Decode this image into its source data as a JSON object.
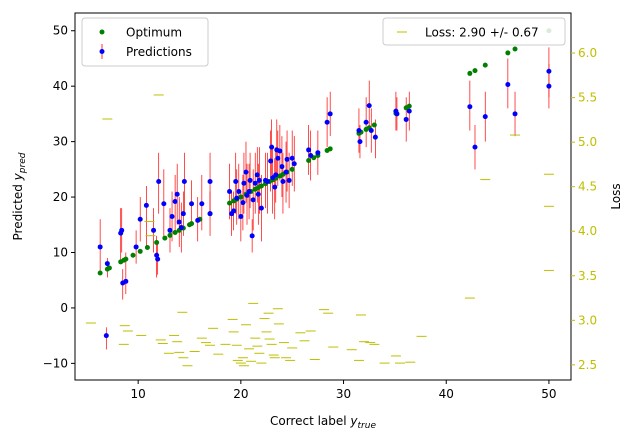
{
  "chart_data": {
    "type": "scatter",
    "xlabel": "Correct label y_true",
    "ylabel": "Predicted y_pred",
    "y2label": "Loss",
    "xlim": [
      3.85,
      52.15
    ],
    "ylim": [
      -13.0,
      53.2
    ],
    "y2lim": [
      2.33,
      6.45
    ],
    "xticks": [
      10,
      20,
      30,
      40,
      50
    ],
    "yticks": [
      -10,
      0,
      10,
      20,
      30,
      40,
      50
    ],
    "y2ticks": [
      2.5,
      3.0,
      3.5,
      4.0,
      4.5,
      5.0,
      5.5,
      6.0
    ],
    "colors": {
      "optimum": "#008000",
      "predictions": "#0000ff",
      "errorbar": "#ff0000",
      "loss": "#bfbf00"
    },
    "legend_left": [
      {
        "label": "Optimum",
        "marker": "dot",
        "color": "#008000"
      },
      {
        "label": "Predictions",
        "marker": "dot-errorbar",
        "color": "#0000ff"
      }
    ],
    "legend_right": {
      "label": "Loss: 2.90 +/- 0.67",
      "marker": "dash",
      "color": "#bfbf00"
    },
    "series": [
      {
        "name": "Optimum",
        "points": [
          [
            6.3,
            6.3
          ],
          [
            7.0,
            7.0
          ],
          [
            7.2,
            7.2
          ],
          [
            8.3,
            8.3
          ],
          [
            8.6,
            8.6
          ],
          [
            8.8,
            8.8
          ],
          [
            9.5,
            9.5
          ],
          [
            10.2,
            10.2
          ],
          [
            10.9,
            10.9
          ],
          [
            11.8,
            11.8
          ],
          [
            12.6,
            12.6
          ],
          [
            13.1,
            13.1
          ],
          [
            13.6,
            13.6
          ],
          [
            14.0,
            14.0
          ],
          [
            14.4,
            14.4
          ],
          [
            15.0,
            15.0
          ],
          [
            15.2,
            15.2
          ],
          [
            16.0,
            16.0
          ],
          [
            17.0,
            17.0
          ],
          [
            18.9,
            18.9
          ],
          [
            19.3,
            19.3
          ],
          [
            19.6,
            19.6
          ],
          [
            20.0,
            20.0
          ],
          [
            20.5,
            20.5
          ],
          [
            21.0,
            21.0
          ],
          [
            21.4,
            21.4
          ],
          [
            21.7,
            21.7
          ],
          [
            22.0,
            22.0
          ],
          [
            22.4,
            22.4
          ],
          [
            22.8,
            22.8
          ],
          [
            23.1,
            23.1
          ],
          [
            23.4,
            23.4
          ],
          [
            23.8,
            23.8
          ],
          [
            24.1,
            24.1
          ],
          [
            24.5,
            24.5
          ],
          [
            25.0,
            25.0
          ],
          [
            26.6,
            26.6
          ],
          [
            27.1,
            27.1
          ],
          [
            27.5,
            27.5
          ],
          [
            28.4,
            28.4
          ],
          [
            28.7,
            28.7
          ],
          [
            31.5,
            31.5
          ],
          [
            31.7,
            31.7
          ],
          [
            32.2,
            32.2
          ],
          [
            32.5,
            32.5
          ],
          [
            33.0,
            33.0
          ],
          [
            35.1,
            35.1
          ],
          [
            36.1,
            36.1
          ],
          [
            36.4,
            36.4
          ],
          [
            42.3,
            42.3
          ],
          [
            42.8,
            42.8
          ],
          [
            43.8,
            43.8
          ],
          [
            46.0,
            46.0
          ],
          [
            46.7,
            46.7
          ],
          [
            50.0,
            50.0
          ]
        ]
      },
      {
        "name": "Predictions",
        "points": [
          [
            6.3,
            11.0
          ],
          [
            6.9,
            -5.0
          ],
          [
            7.0,
            8.0
          ],
          [
            8.3,
            13.5
          ],
          [
            8.4,
            14.0
          ],
          [
            8.5,
            4.5
          ],
          [
            8.8,
            4.8
          ],
          [
            9.8,
            11.0
          ],
          [
            10.2,
            16.0
          ],
          [
            10.8,
            18.5
          ],
          [
            11.5,
            14.0
          ],
          [
            11.8,
            9.5
          ],
          [
            11.9,
            8.8
          ],
          [
            12.0,
            22.8
          ],
          [
            12.5,
            18.8
          ],
          [
            13.1,
            14.0
          ],
          [
            13.3,
            16.5
          ],
          [
            13.6,
            19.2
          ],
          [
            13.8,
            20.5
          ],
          [
            14.0,
            15.5
          ],
          [
            14.2,
            14.5
          ],
          [
            14.4,
            17.0
          ],
          [
            14.5,
            22.8
          ],
          [
            15.2,
            18.8
          ],
          [
            15.8,
            15.8
          ],
          [
            16.2,
            18.8
          ],
          [
            17.0,
            17.0
          ],
          [
            17.0,
            22.8
          ],
          [
            18.9,
            21.0
          ],
          [
            19.1,
            17.0
          ],
          [
            19.3,
            17.5
          ],
          [
            19.5,
            22.8
          ],
          [
            19.6,
            19.8
          ],
          [
            19.8,
            21.0
          ],
          [
            20.0,
            16.5
          ],
          [
            20.2,
            19.0
          ],
          [
            20.3,
            22.5
          ],
          [
            20.5,
            24.5
          ],
          [
            20.6,
            20.3
          ],
          [
            20.8,
            21.0
          ],
          [
            20.9,
            23.0
          ],
          [
            21.1,
            13.0
          ],
          [
            21.2,
            19.5
          ],
          [
            21.4,
            22.5
          ],
          [
            21.6,
            24.0
          ],
          [
            21.7,
            20.5
          ],
          [
            21.8,
            23.0
          ],
          [
            22.0,
            18.0
          ],
          [
            22.4,
            23.0
          ],
          [
            22.6,
            22.8
          ],
          [
            22.9,
            26.5
          ],
          [
            23.0,
            29.0
          ],
          [
            23.1,
            23.5
          ],
          [
            23.3,
            21.8
          ],
          [
            23.4,
            24.0
          ],
          [
            23.5,
            28.5
          ],
          [
            23.6,
            27.0
          ],
          [
            23.8,
            28.3
          ],
          [
            24.0,
            25.5
          ],
          [
            24.1,
            22.8
          ],
          [
            24.4,
            24.5
          ],
          [
            24.5,
            26.8
          ],
          [
            24.7,
            23.0
          ],
          [
            25.0,
            27.0
          ],
          [
            25.2,
            26.0
          ],
          [
            26.6,
            28.5
          ],
          [
            26.8,
            27.5
          ],
          [
            27.5,
            28.0
          ],
          [
            28.4,
            33.5
          ],
          [
            28.7,
            35.0
          ],
          [
            31.5,
            32.0
          ],
          [
            31.6,
            30.0
          ],
          [
            32.2,
            33.5
          ],
          [
            32.5,
            36.5
          ],
          [
            32.7,
            32.0
          ],
          [
            33.1,
            30.8
          ],
          [
            35.1,
            35.5
          ],
          [
            35.2,
            35.0
          ],
          [
            36.1,
            34.0
          ],
          [
            36.4,
            35.5
          ],
          [
            42.3,
            36.3
          ],
          [
            42.8,
            29.0
          ],
          [
            43.8,
            34.5
          ],
          [
            46.0,
            40.3
          ],
          [
            46.7,
            35.0
          ],
          [
            50.0,
            42.7
          ],
          [
            50.0,
            40.0
          ]
        ]
      },
      {
        "name": "Loss",
        "points": [
          [
            5.4,
            2.97
          ],
          [
            7.0,
            5.26
          ],
          [
            8.7,
            2.94
          ],
          [
            9.0,
            2.88
          ],
          [
            8.6,
            2.73
          ],
          [
            10.3,
            2.83
          ],
          [
            11.1,
            4.11
          ],
          [
            11.2,
            3.95
          ],
          [
            12.0,
            5.53
          ],
          [
            12.2,
            2.78
          ],
          [
            12.4,
            2.74
          ],
          [
            13.0,
            2.63
          ],
          [
            13.5,
            2.83
          ],
          [
            13.8,
            2.76
          ],
          [
            14.0,
            2.64
          ],
          [
            14.3,
            3.09
          ],
          [
            14.4,
            2.58
          ],
          [
            14.8,
            2.49
          ],
          [
            15.5,
            2.65
          ],
          [
            16.2,
            2.8
          ],
          [
            16.6,
            2.75
          ],
          [
            17.0,
            2.72
          ],
          [
            17.3,
            2.91
          ],
          [
            17.8,
            2.62
          ],
          [
            18.5,
            2.73
          ],
          [
            19.2,
            3.01
          ],
          [
            19.3,
            2.87
          ],
          [
            19.6,
            2.72
          ],
          [
            19.7,
            2.55
          ],
          [
            20.0,
            2.52
          ],
          [
            20.2,
            2.58
          ],
          [
            20.3,
            2.49
          ],
          [
            20.5,
            2.95
          ],
          [
            20.8,
            2.68
          ],
          [
            21.0,
            2.54
          ],
          [
            21.2,
            3.19
          ],
          [
            21.4,
            2.8
          ],
          [
            21.6,
            2.71
          ],
          [
            21.8,
            2.63
          ],
          [
            22.0,
            2.52
          ],
          [
            22.3,
            3.02
          ],
          [
            22.5,
            2.87
          ],
          [
            22.7,
            3.08
          ],
          [
            22.8,
            2.79
          ],
          [
            23.0,
            2.73
          ],
          [
            23.2,
            2.61
          ],
          [
            23.3,
            2.58
          ],
          [
            23.6,
            3.13
          ],
          [
            23.7,
            2.96
          ],
          [
            24.2,
            2.75
          ],
          [
            24.4,
            2.58
          ],
          [
            24.8,
            2.55
          ],
          [
            25.0,
            2.69
          ],
          [
            25.8,
            2.86
          ],
          [
            26.2,
            2.77
          ],
          [
            26.8,
            2.88
          ],
          [
            27.2,
            2.56
          ],
          [
            28.1,
            3.12
          ],
          [
            28.5,
            3.08
          ],
          [
            29.0,
            2.7
          ],
          [
            30.8,
            2.67
          ],
          [
            31.5,
            2.55
          ],
          [
            31.7,
            3.06
          ],
          [
            32.0,
            2.76
          ],
          [
            32.6,
            2.75
          ],
          [
            33.0,
            2.73
          ],
          [
            34.0,
            2.52
          ],
          [
            35.1,
            2.6
          ],
          [
            35.5,
            2.52
          ],
          [
            36.5,
            2.53
          ],
          [
            37.6,
            2.82
          ],
          [
            42.3,
            3.25
          ],
          [
            43.8,
            4.58
          ],
          [
            46.7,
            5.08
          ],
          [
            50.0,
            4.64
          ],
          [
            50.0,
            4.28
          ],
          [
            50.0,
            3.56
          ]
        ]
      }
    ],
    "errorbars": [
      [
        6.3,
        6.5,
        16.0
      ],
      [
        6.9,
        -7.5,
        -3.5
      ],
      [
        7.0,
        5.5,
        9.0
      ],
      [
        8.3,
        8.0,
        18.0
      ],
      [
        8.4,
        10.0,
        18.0
      ],
      [
        8.5,
        1.5,
        7.0
      ],
      [
        8.8,
        2.5,
        10.0
      ],
      [
        9.8,
        8.0,
        14.0
      ],
      [
        10.2,
        12.0,
        20.0
      ],
      [
        10.8,
        11.0,
        22.0
      ],
      [
        11.5,
        10.0,
        18.0
      ],
      [
        11.8,
        5.5,
        13.0
      ],
      [
        11.9,
        6.0,
        12.0
      ],
      [
        12.0,
        17.0,
        28.0
      ],
      [
        12.5,
        13.0,
        25.0
      ],
      [
        13.1,
        10.0,
        18.0
      ],
      [
        13.3,
        12.0,
        21.0
      ],
      [
        13.6,
        14.0,
        24.0
      ],
      [
        13.8,
        15.0,
        26.0
      ],
      [
        14.0,
        11.0,
        20.0
      ],
      [
        14.2,
        10.0,
        19.0
      ],
      [
        14.4,
        13.0,
        21.0
      ],
      [
        14.5,
        17.0,
        28.0
      ],
      [
        15.2,
        15.0,
        23.0
      ],
      [
        15.8,
        12.0,
        20.0
      ],
      [
        16.2,
        14.0,
        24.0
      ],
      [
        17.0,
        13.0,
        21.0
      ],
      [
        17.0,
        17.0,
        28.0
      ],
      [
        18.9,
        16.0,
        26.0
      ],
      [
        19.1,
        13.0,
        21.0
      ],
      [
        19.3,
        14.0,
        21.0
      ],
      [
        19.5,
        17.0,
        28.0
      ],
      [
        19.6,
        15.0,
        25.0
      ],
      [
        19.8,
        16.0,
        26.0
      ],
      [
        20.0,
        12.0,
        21.0
      ],
      [
        20.2,
        14.0,
        24.0
      ],
      [
        20.3,
        17.0,
        28.0
      ],
      [
        20.5,
        19.0,
        30.0
      ],
      [
        20.6,
        15.0,
        26.0
      ],
      [
        20.8,
        16.0,
        26.0
      ],
      [
        20.9,
        18.0,
        28.0
      ],
      [
        21.1,
        10.0,
        16.0
      ],
      [
        21.2,
        14.0,
        25.0
      ],
      [
        21.4,
        17.0,
        28.0
      ],
      [
        21.6,
        19.0,
        29.0
      ],
      [
        21.7,
        15.0,
        26.0
      ],
      [
        21.8,
        17.0,
        29.0
      ],
      [
        22.0,
        12.0,
        24.0
      ],
      [
        22.4,
        18.0,
        28.0
      ],
      [
        22.6,
        17.0,
        28.0
      ],
      [
        22.9,
        21.0,
        32.0
      ],
      [
        23.0,
        24.0,
        34.0
      ],
      [
        23.1,
        17.0,
        29.0
      ],
      [
        23.3,
        16.0,
        27.0
      ],
      [
        23.4,
        19.0,
        29.0
      ],
      [
        23.5,
        23.0,
        34.0
      ],
      [
        23.6,
        22.0,
        32.0
      ],
      [
        23.8,
        23.0,
        33.0
      ],
      [
        24.0,
        20.0,
        31.0
      ],
      [
        24.1,
        17.0,
        28.0
      ],
      [
        24.4,
        19.0,
        30.0
      ],
      [
        24.5,
        21.0,
        32.0
      ],
      [
        24.7,
        18.0,
        28.0
      ],
      [
        25.0,
        22.0,
        32.0
      ],
      [
        25.2,
        21.0,
        31.0
      ],
      [
        26.6,
        24.0,
        33.0
      ],
      [
        26.8,
        23.0,
        32.0
      ],
      [
        27.5,
        24.0,
        32.0
      ],
      [
        28.4,
        29.0,
        38.0
      ],
      [
        28.7,
        31.0,
        39.0
      ],
      [
        31.5,
        28.0,
        36.0
      ],
      [
        31.6,
        27.0,
        33.0
      ],
      [
        32.2,
        29.0,
        38.0
      ],
      [
        32.5,
        32.0,
        41.0
      ],
      [
        32.7,
        28.0,
        36.0
      ],
      [
        33.1,
        27.0,
        34.0
      ],
      [
        35.1,
        32.0,
        39.0
      ],
      [
        35.2,
        32.0,
        38.0
      ],
      [
        36.1,
        30.0,
        38.0
      ],
      [
        36.4,
        32.0,
        39.0
      ],
      [
        42.3,
        32.0,
        41.0
      ],
      [
        42.8,
        25.0,
        33.0
      ],
      [
        43.8,
        30.0,
        39.0
      ],
      [
        46.0,
        36.0,
        45.0
      ],
      [
        46.7,
        31.0,
        39.0
      ],
      [
        50.0,
        38.0,
        47.0
      ],
      [
        50.0,
        36.0,
        44.0
      ]
    ]
  }
}
